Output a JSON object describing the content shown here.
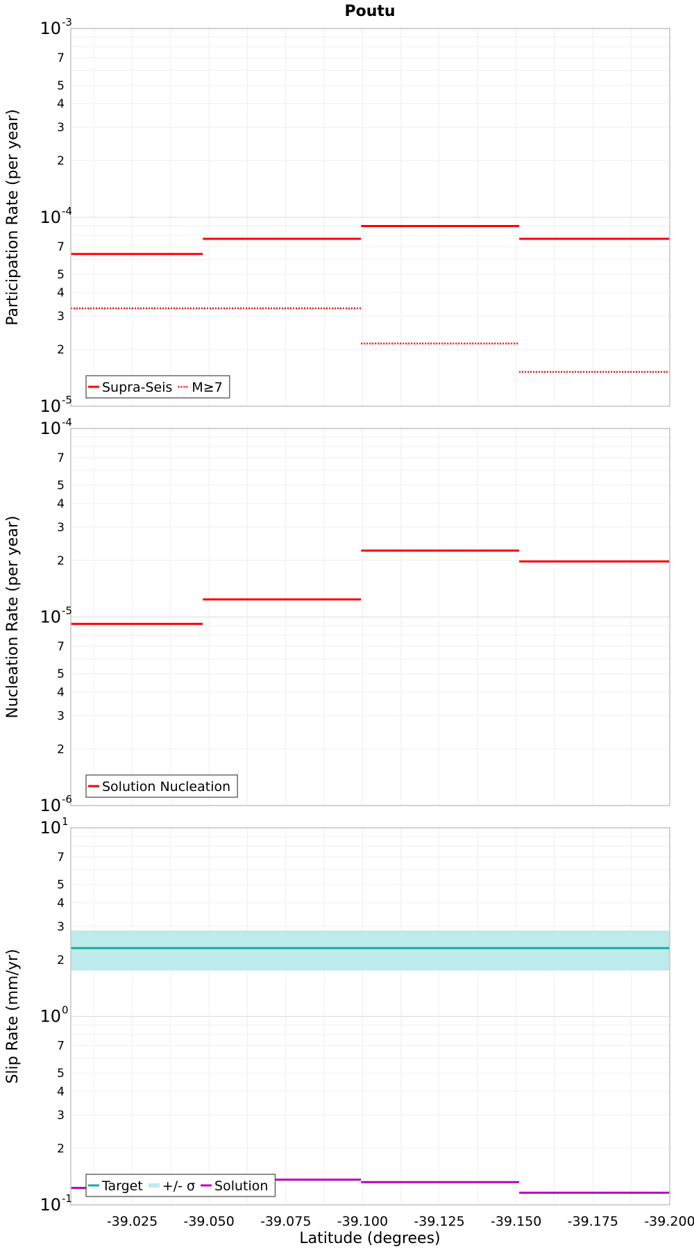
{
  "chart_data": {
    "title": "Poutu",
    "xlabel": "Latitude (degrees)",
    "xlim": [
      -39.005,
      -39.2
    ],
    "x_ticks": [
      -39.025,
      -39.05,
      -39.075,
      -39.1,
      -39.125,
      -39.15,
      -39.175,
      -39.2
    ],
    "x_tick_labels": [
      "-39.025",
      "-39.050",
      "-39.075",
      "-39.100",
      "-39.125",
      "-39.150",
      "-39.175",
      "-39.200"
    ],
    "panels": [
      {
        "type": "line",
        "ylabel": "Participation Rate (per year)",
        "yscale": "log",
        "ylim": [
          1e-05,
          0.001
        ],
        "major_ticks": [
          {
            "value": 1e-05,
            "exp": "-5"
          },
          {
            "value": 0.0001,
            "exp": "-4"
          },
          {
            "value": 0.001,
            "exp": "-3"
          }
        ],
        "legend_position": "bottom-left",
        "series": [
          {
            "name": "Supra-Seis",
            "style": "solid",
            "color": "#ff0000",
            "segments": [
              {
                "x": [
                  -39.005,
                  -39.048
                ],
                "y": 6.4e-05
              },
              {
                "x": [
                  -39.048,
                  -39.0995
                ],
                "y": 7.7e-05
              },
              {
                "x": [
                  -39.0995,
                  -39.151
                ],
                "y": 9e-05
              },
              {
                "x": [
                  -39.151,
                  -39.2
                ],
                "y": 7.7e-05
              }
            ]
          },
          {
            "name": "M≥7",
            "style": "dotted",
            "color": "#ff0000",
            "segments": [
              {
                "x": [
                  -39.005,
                  -39.0995
                ],
                "y": 3.3e-05
              },
              {
                "x": [
                  -39.0995,
                  -39.151
                ],
                "y": 2.15e-05
              },
              {
                "x": [
                  -39.151,
                  -39.2
                ],
                "y": 1.52e-05
              }
            ]
          }
        ]
      },
      {
        "type": "line",
        "ylabel": "Nucleation Rate (per year)",
        "yscale": "log",
        "ylim": [
          1e-06,
          0.0001
        ],
        "major_ticks": [
          {
            "value": 1e-06,
            "exp": "-6"
          },
          {
            "value": 1e-05,
            "exp": "-5"
          },
          {
            "value": 0.0001,
            "exp": "-4"
          }
        ],
        "legend_position": "bottom-left",
        "series": [
          {
            "name": "Solution Nucleation",
            "style": "solid",
            "color": "#ff0000",
            "segments": [
              {
                "x": [
                  -39.005,
                  -39.048
                ],
                "y": 9.2e-06
              },
              {
                "x": [
                  -39.048,
                  -39.0995
                ],
                "y": 1.24e-05
              },
              {
                "x": [
                  -39.0995,
                  -39.151
                ],
                "y": 2.25e-05
              },
              {
                "x": [
                  -39.151,
                  -39.2
                ],
                "y": 1.97e-05
              }
            ]
          }
        ]
      },
      {
        "type": "line",
        "ylabel": "Slip Rate (mm/yr)",
        "yscale": "log",
        "ylim": [
          0.1,
          10
        ],
        "major_ticks": [
          {
            "value": 0.1,
            "exp": "-1"
          },
          {
            "value": 1,
            "exp": "0"
          },
          {
            "value": 10,
            "exp": "1"
          }
        ],
        "legend_position": "bottom-left",
        "band": {
          "name": "+/- σ",
          "color": "#bdeaea",
          "low": 1.75,
          "high": 2.85,
          "x": [
            -39.005,
            -39.2
          ]
        },
        "series": [
          {
            "name": "Target",
            "style": "solid",
            "color": "#1aaa9f",
            "segments": [
              {
                "x": [
                  -39.005,
                  -39.2
                ],
                "y": 2.3
              }
            ]
          },
          {
            "name": "Solution",
            "style": "solid",
            "color": "#bb00bb",
            "segments": [
              {
                "x": [
                  -39.005,
                  -39.048
                ],
                "y": 0.123
              },
              {
                "x": [
                  -39.048,
                  -39.0995
                ],
                "y": 0.136
              },
              {
                "x": [
                  -39.0995,
                  -39.151
                ],
                "y": 0.132
              },
              {
                "x": [
                  -39.151,
                  -39.2
                ],
                "y": 0.116
              }
            ]
          }
        ]
      }
    ]
  }
}
